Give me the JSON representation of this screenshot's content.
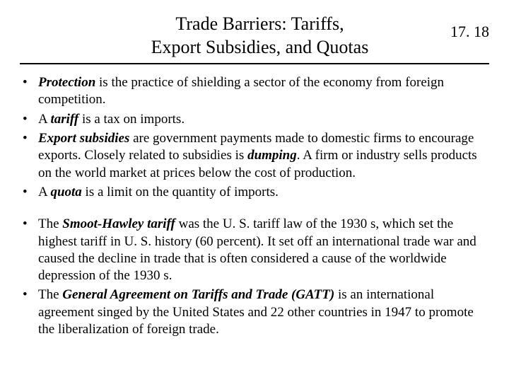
{
  "colors": {
    "background": "#ffffff",
    "text": "#000000",
    "rule": "#000000"
  },
  "typography": {
    "family": "Times New Roman",
    "title_fontsize": 26,
    "pagenum_fontsize": 22,
    "body_fontsize": 19
  },
  "header": {
    "title_line1": "Trade Barriers:  Tariffs,",
    "title_line2": "Export Subsidies, and Quotas",
    "page_number": "17. 18"
  },
  "bullets_a": [
    {
      "html": "<em class='term'>Protection</em> is the practice of shielding a sector of the economy from foreign competition."
    },
    {
      "html": "A <em class='term'>tariff</em> is a tax on imports."
    },
    {
      "html": "<em class='term'>Export subsidies</em> are government payments made to domestic firms to encourage exports.  Closely related to subsidies is <em class='term'>dumping</em>.  A firm or industry sells products on the world market at prices below the cost of production."
    },
    {
      "html": "A <em class='term'>quota</em> is a limit on the quantity of imports."
    }
  ],
  "bullets_b": [
    {
      "html": "The <em class='term'>Smoot-Hawley tariff</em> was the U. S. tariff law of the 1930 s, which set the highest tariff in U. S. history (60 percent).  It set off an international trade war and caused the decline in trade that is often considered a cause of the worldwide depression of the 1930 s."
    },
    {
      "html": "The <em class='term'>General Agreement on Tariffs and Trade (GATT)</em> is an international agreement singed by the United States and 22 other countries in 1947 to promote the liberalization of foreign trade."
    }
  ]
}
